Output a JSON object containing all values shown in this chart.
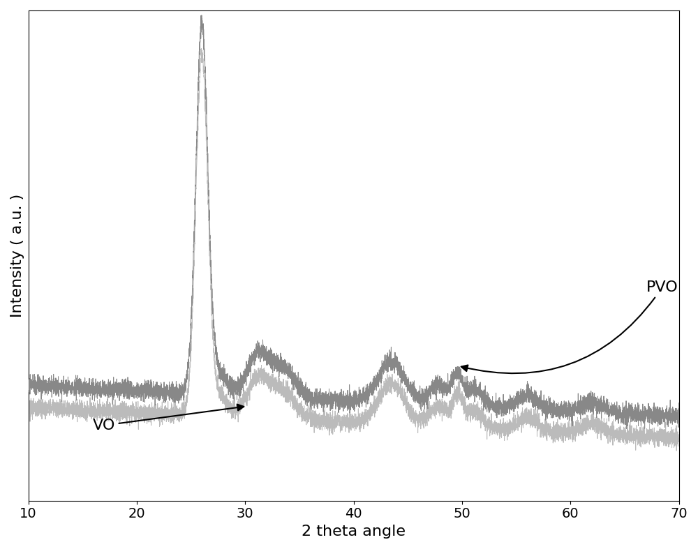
{
  "xlabel": "2 theta angle",
  "ylabel": "Intensity ( a.u. )",
  "xlim": [
    10,
    70
  ],
  "ylim": [
    -0.05,
    1.35
  ],
  "xticks": [
    10,
    20,
    30,
    40,
    50,
    60,
    70
  ],
  "background_color": "#ffffff",
  "line_color_pvo": "#888888",
  "line_color_vo": "#bbbbbb",
  "label_pvo": "PVO",
  "label_vo": "VO",
  "axis_fontsize": 16,
  "tick_fontsize": 14,
  "annotation_fontsize": 16
}
